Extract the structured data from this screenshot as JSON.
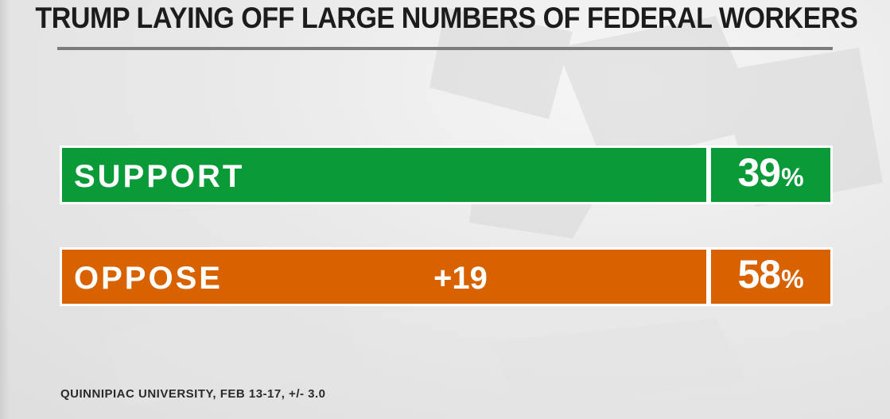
{
  "chart_data": {
    "type": "bar",
    "orientation": "horizontal",
    "title": "TRUMP LAYING OFF LARGE NUMBERS OF FEDERAL WORKERS",
    "categories": [
      "SUPPORT",
      "OPPOSE"
    ],
    "values": [
      39,
      58
    ],
    "value_labels": [
      "39",
      "58"
    ],
    "unit": "%",
    "annotations": [
      {
        "category": "OPPOSE",
        "text": "+19"
      }
    ],
    "source": "QUINNIPIAC UNIVERSITY, FEB 13-17, +/- 3.0",
    "colors": {
      "SUPPORT": "#0b9a38",
      "OPPOSE": "#d96200",
      "title": "#1c1c1c",
      "rule": "#7c7c7c"
    },
    "grid": false,
    "legend": "none"
  }
}
